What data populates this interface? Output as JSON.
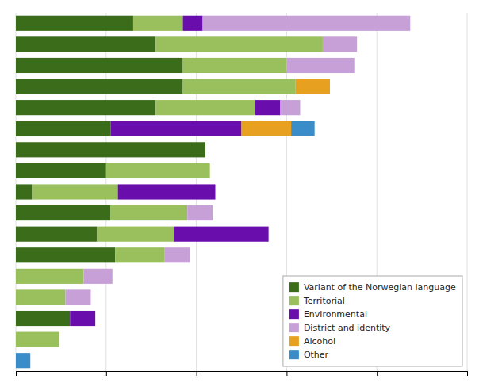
{
  "chart_data": {
    "type": "bar",
    "orientation": "horizontal",
    "stacked": true,
    "categories": [
      null,
      null,
      null,
      null,
      null,
      null,
      null,
      null,
      null,
      null,
      null,
      null,
      null,
      null,
      null,
      null,
      null
    ],
    "series": [
      {
        "name": "Variant of the Norwegian language",
        "color": "#3a6c1a",
        "values": [
          130,
          155,
          185,
          185,
          155,
          105,
          210,
          100,
          18,
          105,
          90,
          110,
          0,
          0,
          60,
          0,
          0
        ]
      },
      {
        "name": "Territorial",
        "color": "#99c05c",
        "values": [
          55,
          185,
          115,
          125,
          110,
          0,
          0,
          115,
          95,
          85,
          85,
          55,
          75,
          55,
          0,
          48,
          0
        ]
      },
      {
        "name": "Environmental",
        "color": "#6a0dad",
        "values": [
          22,
          0,
          0,
          0,
          28,
          145,
          0,
          0,
          108,
          0,
          105,
          0,
          0,
          0,
          28,
          0,
          0
        ]
      },
      {
        "name": "District and identity",
        "color": "#c8a0d8",
        "values": [
          230,
          38,
          75,
          0,
          22,
          0,
          0,
          0,
          0,
          28,
          0,
          28,
          32,
          28,
          0,
          0,
          0
        ]
      },
      {
        "name": "Alcohol",
        "color": "#e8a020",
        "values": [
          0,
          0,
          0,
          38,
          0,
          55,
          0,
          0,
          0,
          0,
          0,
          0,
          0,
          0,
          0,
          0,
          0
        ]
      },
      {
        "name": "Other",
        "color": "#3a8dc8",
        "values": [
          0,
          0,
          0,
          0,
          0,
          26,
          0,
          0,
          0,
          0,
          0,
          0,
          0,
          0,
          0,
          0,
          16
        ]
      }
    ],
    "xlim": [
      0,
      500
    ],
    "xticks": [
      0,
      100,
      200,
      300,
      400,
      500
    ],
    "grid": true,
    "legend": "lower right",
    "tick_labels": false
  }
}
